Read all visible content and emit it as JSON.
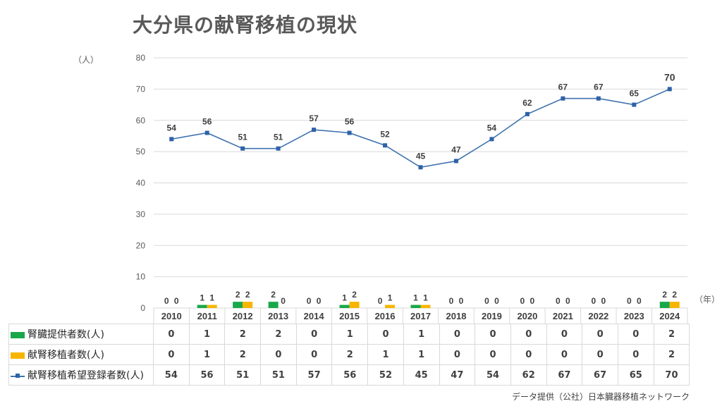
{
  "title": "大分県の献腎移植の現状",
  "y_unit": "（人）",
  "x_unit": "（年）",
  "source": "データ提供（公社）日本臓器移植ネットワーク",
  "colors": {
    "donor": "#18a84a",
    "transplant": "#f7b500",
    "waitlist": "#3f72af"
  },
  "chart_data": {
    "type": "bar+line",
    "categories": [
      "2010",
      "2011",
      "2012",
      "2013",
      "2014",
      "2015",
      "2016",
      "2017",
      "2018",
      "2019",
      "2020",
      "2021",
      "2022",
      "2023",
      "2024"
    ],
    "yticks": [
      "0",
      "10",
      "20",
      "30",
      "40",
      "50",
      "60",
      "70",
      "80"
    ],
    "ylim": [
      0,
      80
    ],
    "grid": true,
    "series": [
      {
        "name": "腎臓提供者数(人)",
        "type": "bar",
        "values": [
          0,
          1,
          2,
          2,
          0,
          1,
          0,
          1,
          0,
          0,
          0,
          0,
          0,
          0,
          2
        ]
      },
      {
        "name": "献腎移植者数(人)",
        "type": "bar",
        "values": [
          0,
          1,
          2,
          0,
          0,
          2,
          1,
          1,
          0,
          0,
          0,
          0,
          0,
          0,
          2
        ]
      },
      {
        "name": "献腎移植希望登録者数(人)",
        "type": "line",
        "values": [
          54,
          56,
          51,
          51,
          57,
          56,
          52,
          45,
          47,
          54,
          62,
          67,
          67,
          65,
          70
        ]
      }
    ],
    "legend": "data-table"
  }
}
